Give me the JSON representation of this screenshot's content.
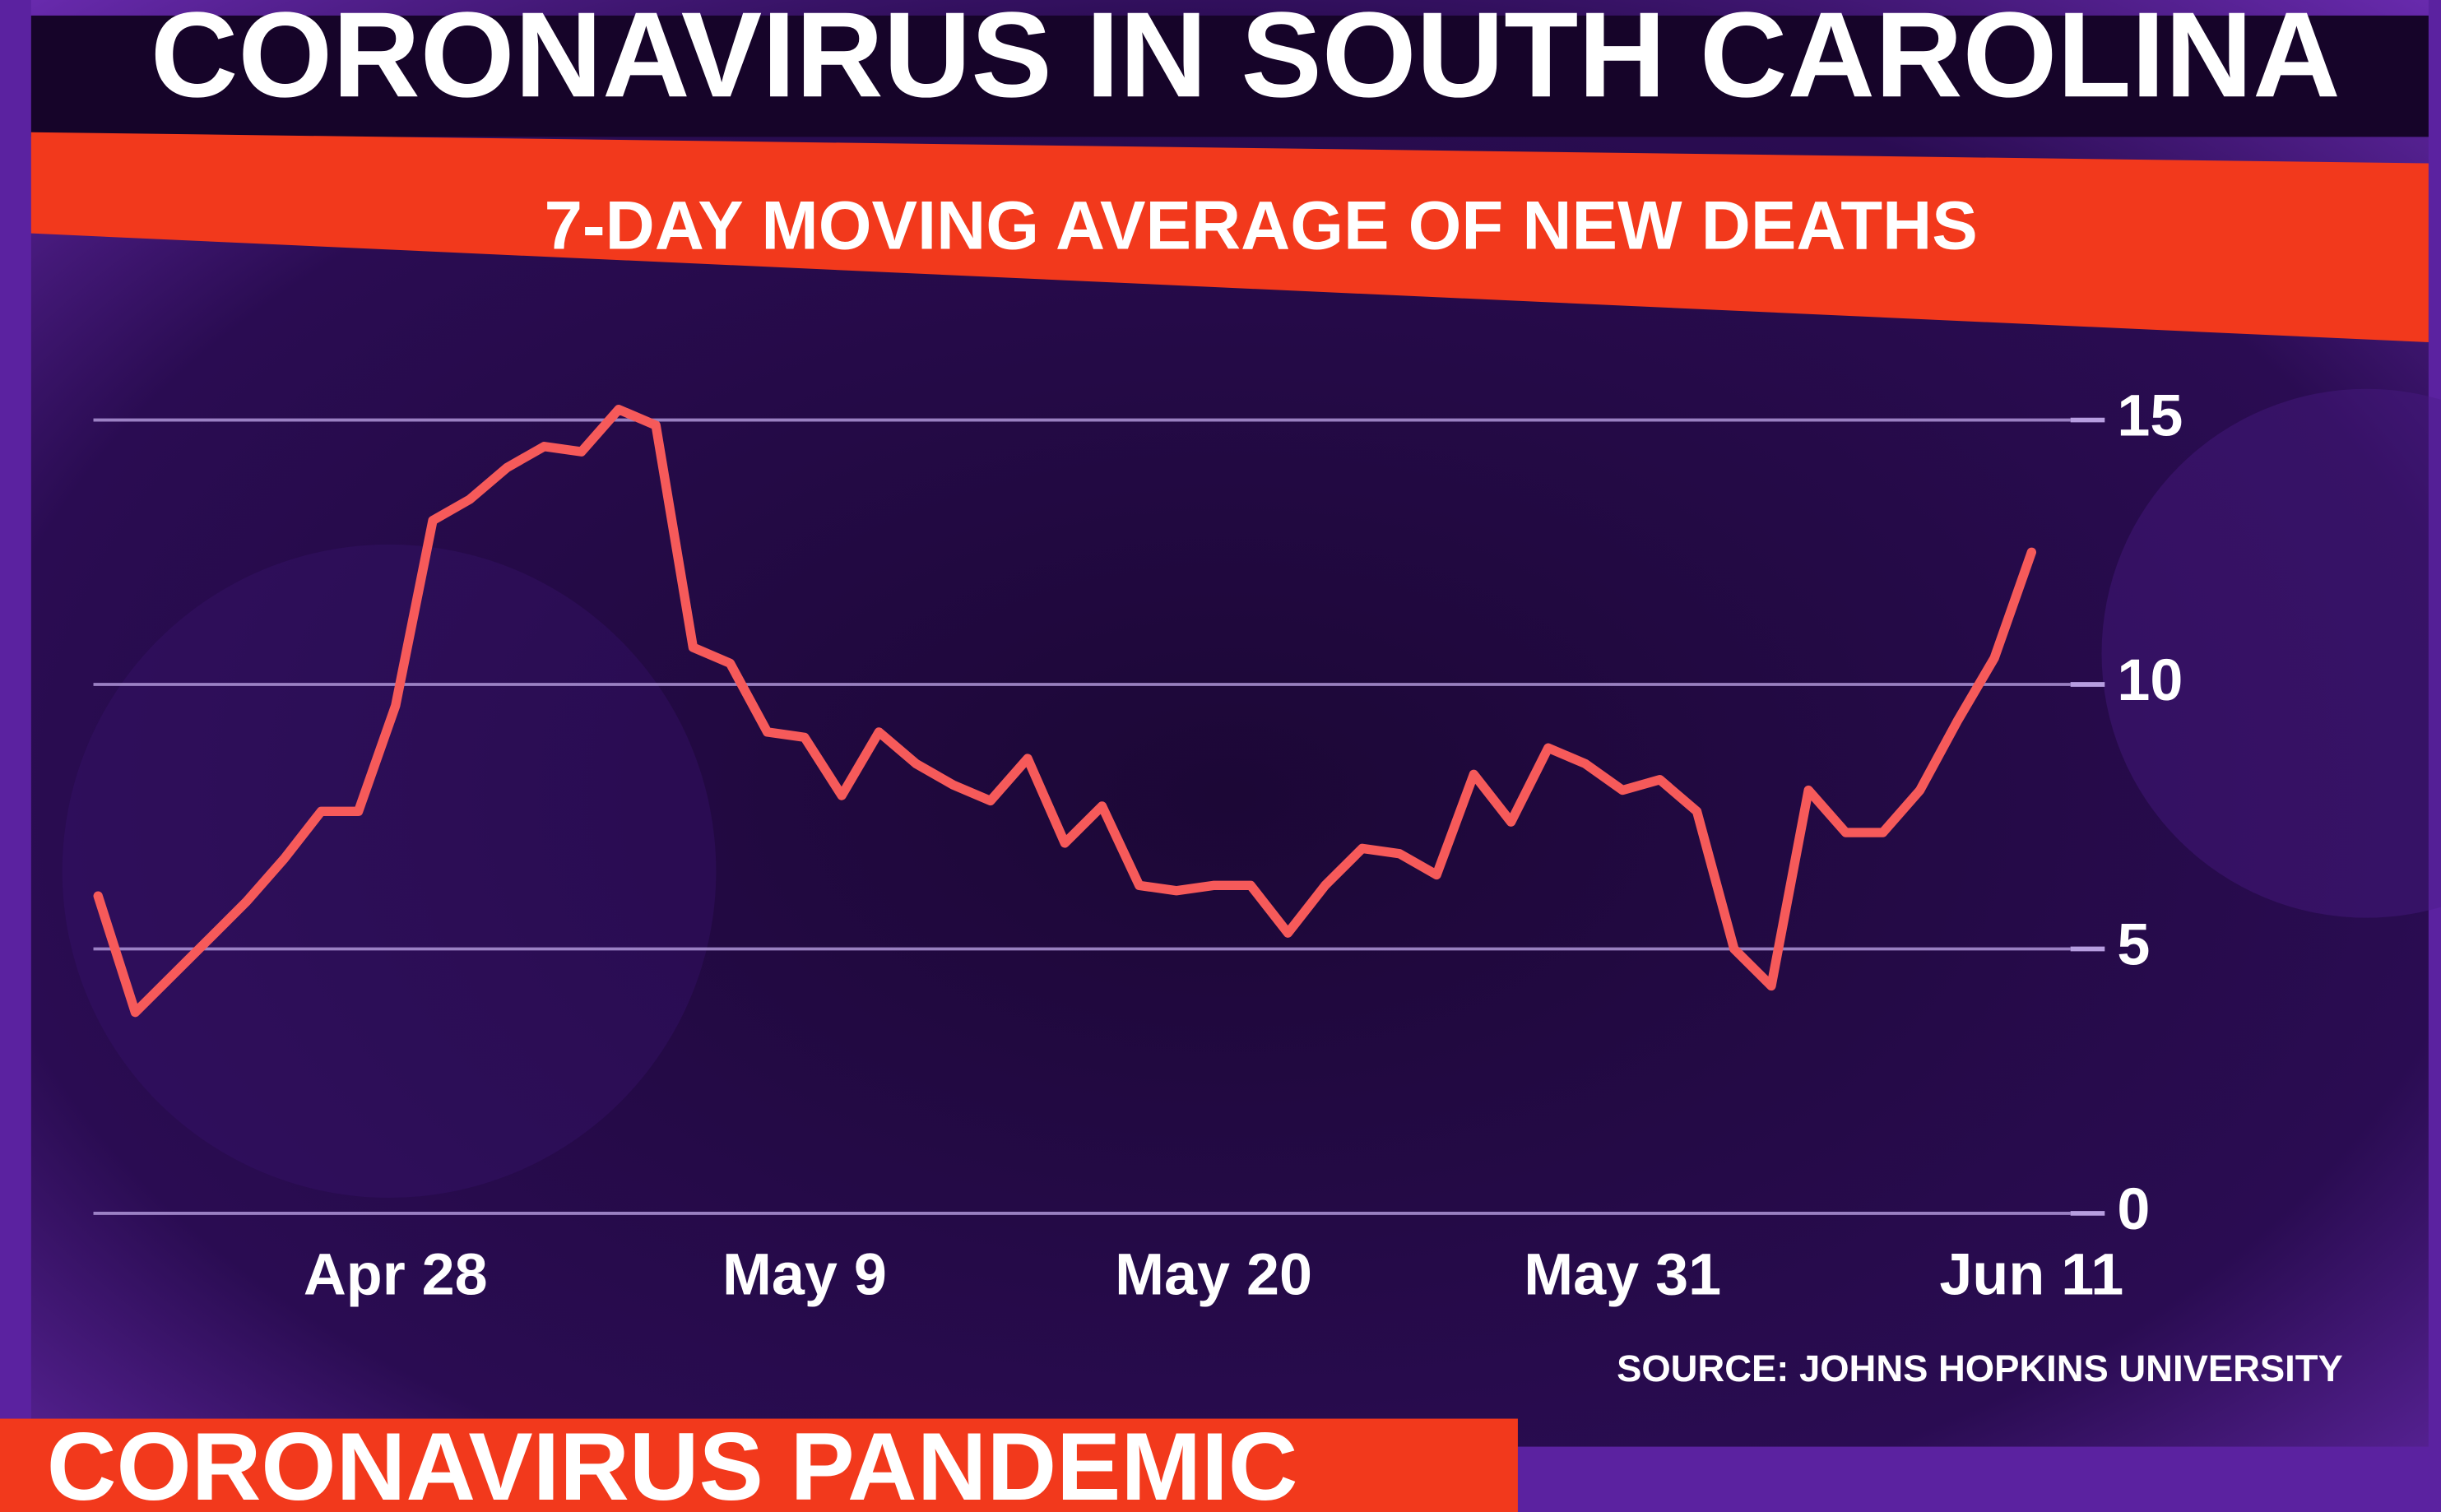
{
  "chart_data": {
    "type": "line",
    "title": "CORONAVIRUS IN SOUTH CAROLINA",
    "subtitle": "7-DAY MOVING AVERAGE OF NEW DEATHS",
    "source": "SOURCE: JOHNS HOPKINS UNIVERSITY",
    "categories": [
      null,
      null,
      null,
      null,
      null,
      null,
      null,
      null,
      "Apr 28",
      null,
      null,
      null,
      null,
      null,
      null,
      null,
      null,
      null,
      null,
      "May 9",
      null,
      null,
      null,
      null,
      null,
      null,
      null,
      null,
      null,
      null,
      "May 20",
      null,
      null,
      null,
      null,
      null,
      null,
      null,
      null,
      null,
      null,
      "May 31",
      null,
      null,
      null,
      null,
      null,
      null,
      null,
      null,
      null,
      null,
      "Jun 11"
    ],
    "values": [
      6.0,
      3.8,
      4.5,
      5.2,
      5.9,
      6.7,
      7.6,
      7.6,
      9.6,
      13.1,
      13.5,
      14.1,
      14.5,
      14.4,
      15.2,
      14.9,
      10.7,
      10.4,
      9.1,
      9.0,
      7.9,
      9.1,
      8.5,
      8.1,
      7.8,
      8.6,
      7.0,
      7.7,
      6.2,
      6.1,
      6.2,
      6.2,
      5.3,
      6.2,
      6.9,
      6.8,
      6.4,
      8.3,
      7.4,
      8.8,
      8.5,
      8.0,
      8.2,
      7.6,
      5.0,
      4.3,
      8.0,
      7.2,
      7.2,
      8.0,
      9.3,
      10.5,
      12.5
    ],
    "color": "#f65a5a",
    "ylim": [
      0,
      17
    ],
    "yticks": [
      0,
      5,
      10,
      15
    ],
    "grid": true
  },
  "banner": "CORONAVIRUS PANDEMIC"
}
